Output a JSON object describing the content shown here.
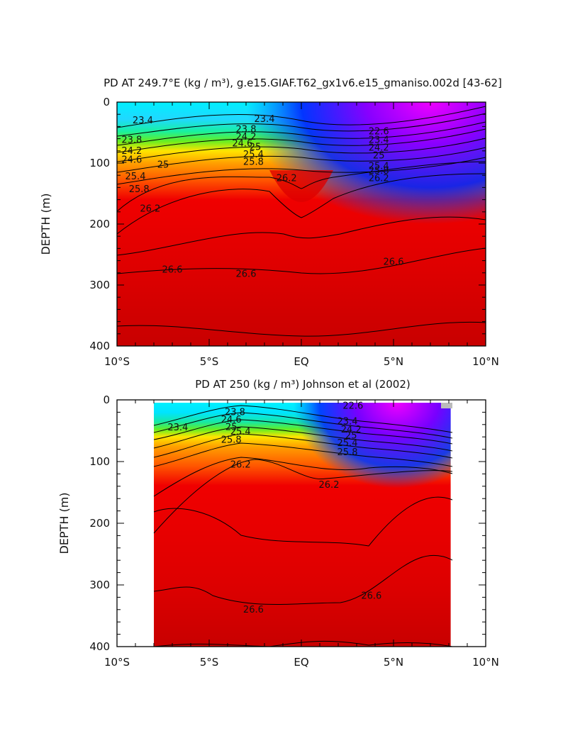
{
  "chart_data": [
    {
      "type": "heatmap",
      "title": "PD AT 249.7°E (kg / m³), g.e15.GIAF.T62_gx1v6.e15_gmaniso.002d [43-62]",
      "xlabel": "",
      "ylabel": "DEPTH (m)",
      "xlim": [
        -10,
        10
      ],
      "ylim": [
        400,
        0
      ],
      "x_ticks": [
        -10,
        -5,
        0,
        5,
        10
      ],
      "x_tick_labels": [
        "10°S",
        "5°S",
        "EQ",
        "5°N",
        "10°N"
      ],
      "y_ticks": [
        0,
        100,
        200,
        300,
        400
      ],
      "y_tick_labels": [
        "0",
        "100",
        "200",
        "300",
        "400"
      ],
      "data_xlim": [
        -10,
        10
      ],
      "contour_labels": [
        {
          "text": "23.4",
          "x": -8.6,
          "y": 30
        },
        {
          "text": "23.4",
          "x": -2.0,
          "y": 28
        },
        {
          "text": "23.8",
          "x": -9.2,
          "y": 62
        },
        {
          "text": "23.8",
          "x": -3.0,
          "y": 45
        },
        {
          "text": "24.2",
          "x": -9.2,
          "y": 80
        },
        {
          "text": "24.2",
          "x": -3.0,
          "y": 57
        },
        {
          "text": "24.6",
          "x": -9.2,
          "y": 95
        },
        {
          "text": "24.6",
          "x": -3.2,
          "y": 68
        },
        {
          "text": "25",
          "x": -7.5,
          "y": 103
        },
        {
          "text": "25",
          "x": -2.5,
          "y": 74
        },
        {
          "text": "25.4",
          "x": -9.0,
          "y": 122
        },
        {
          "text": "25.4",
          "x": -2.6,
          "y": 86
        },
        {
          "text": "25.8",
          "x": -8.8,
          "y": 143
        },
        {
          "text": "25.8",
          "x": -2.6,
          "y": 98
        },
        {
          "text": "26.2",
          "x": -8.2,
          "y": 175
        },
        {
          "text": "26.2",
          "x": -0.8,
          "y": 125
        },
        {
          "text": "22.6",
          "x": 4.2,
          "y": 48
        },
        {
          "text": "23.4",
          "x": 4.2,
          "y": 62
        },
        {
          "text": "24.2",
          "x": 4.2,
          "y": 75
        },
        {
          "text": "25",
          "x": 4.2,
          "y": 88
        },
        {
          "text": "25.4",
          "x": 4.2,
          "y": 105
        },
        {
          "text": "25.8",
          "x": 4.2,
          "y": 113
        },
        {
          "text": "26.2",
          "x": 4.2,
          "y": 125
        },
        {
          "text": "26.6",
          "x": -7.0,
          "y": 275
        },
        {
          "text": "26.6",
          "x": -3.0,
          "y": 282
        },
        {
          "text": "26.6",
          "x": 5.0,
          "y": 262
        }
      ]
    },
    {
      "type": "heatmap",
      "title": "PD AT 250 (kg / m³) Johnson et al (2002)",
      "xlabel": "",
      "ylabel": "DEPTH (m)",
      "xlim": [
        -10,
        10
      ],
      "ylim": [
        400,
        0
      ],
      "x_ticks": [
        -10,
        -5,
        0,
        5,
        10
      ],
      "x_tick_labels": [
        "10°S",
        "5°S",
        "EQ",
        "5°N",
        "10°N"
      ],
      "y_ticks": [
        0,
        100,
        200,
        300,
        400
      ],
      "y_tick_labels": [
        "0",
        "100",
        "200",
        "300",
        "400"
      ],
      "data_xlim": [
        -8,
        8.1
      ],
      "contour_labels": [
        {
          "text": "23.4",
          "x": -6.7,
          "y": 45
        },
        {
          "text": "23.8",
          "x": -3.6,
          "y": 20
        },
        {
          "text": "24.6",
          "x": -3.8,
          "y": 32
        },
        {
          "text": "25",
          "x": -3.8,
          "y": 44
        },
        {
          "text": "25.4",
          "x": -3.3,
          "y": 52
        },
        {
          "text": "25.8",
          "x": -3.8,
          "y": 65
        },
        {
          "text": "26.2",
          "x": -3.3,
          "y": 105
        },
        {
          "text": "22.6",
          "x": 2.8,
          "y": 10
        },
        {
          "text": "23.4",
          "x": 2.5,
          "y": 35
        },
        {
          "text": "24.2",
          "x": 2.7,
          "y": 48
        },
        {
          "text": "25",
          "x": 2.7,
          "y": 58
        },
        {
          "text": "25.4",
          "x": 2.5,
          "y": 70
        },
        {
          "text": "25.8",
          "x": 2.5,
          "y": 85
        },
        {
          "text": "26.2",
          "x": 1.5,
          "y": 138
        },
        {
          "text": "26.6",
          "x": -2.6,
          "y": 340
        },
        {
          "text": "26.6",
          "x": 3.8,
          "y": 318
        }
      ]
    }
  ]
}
